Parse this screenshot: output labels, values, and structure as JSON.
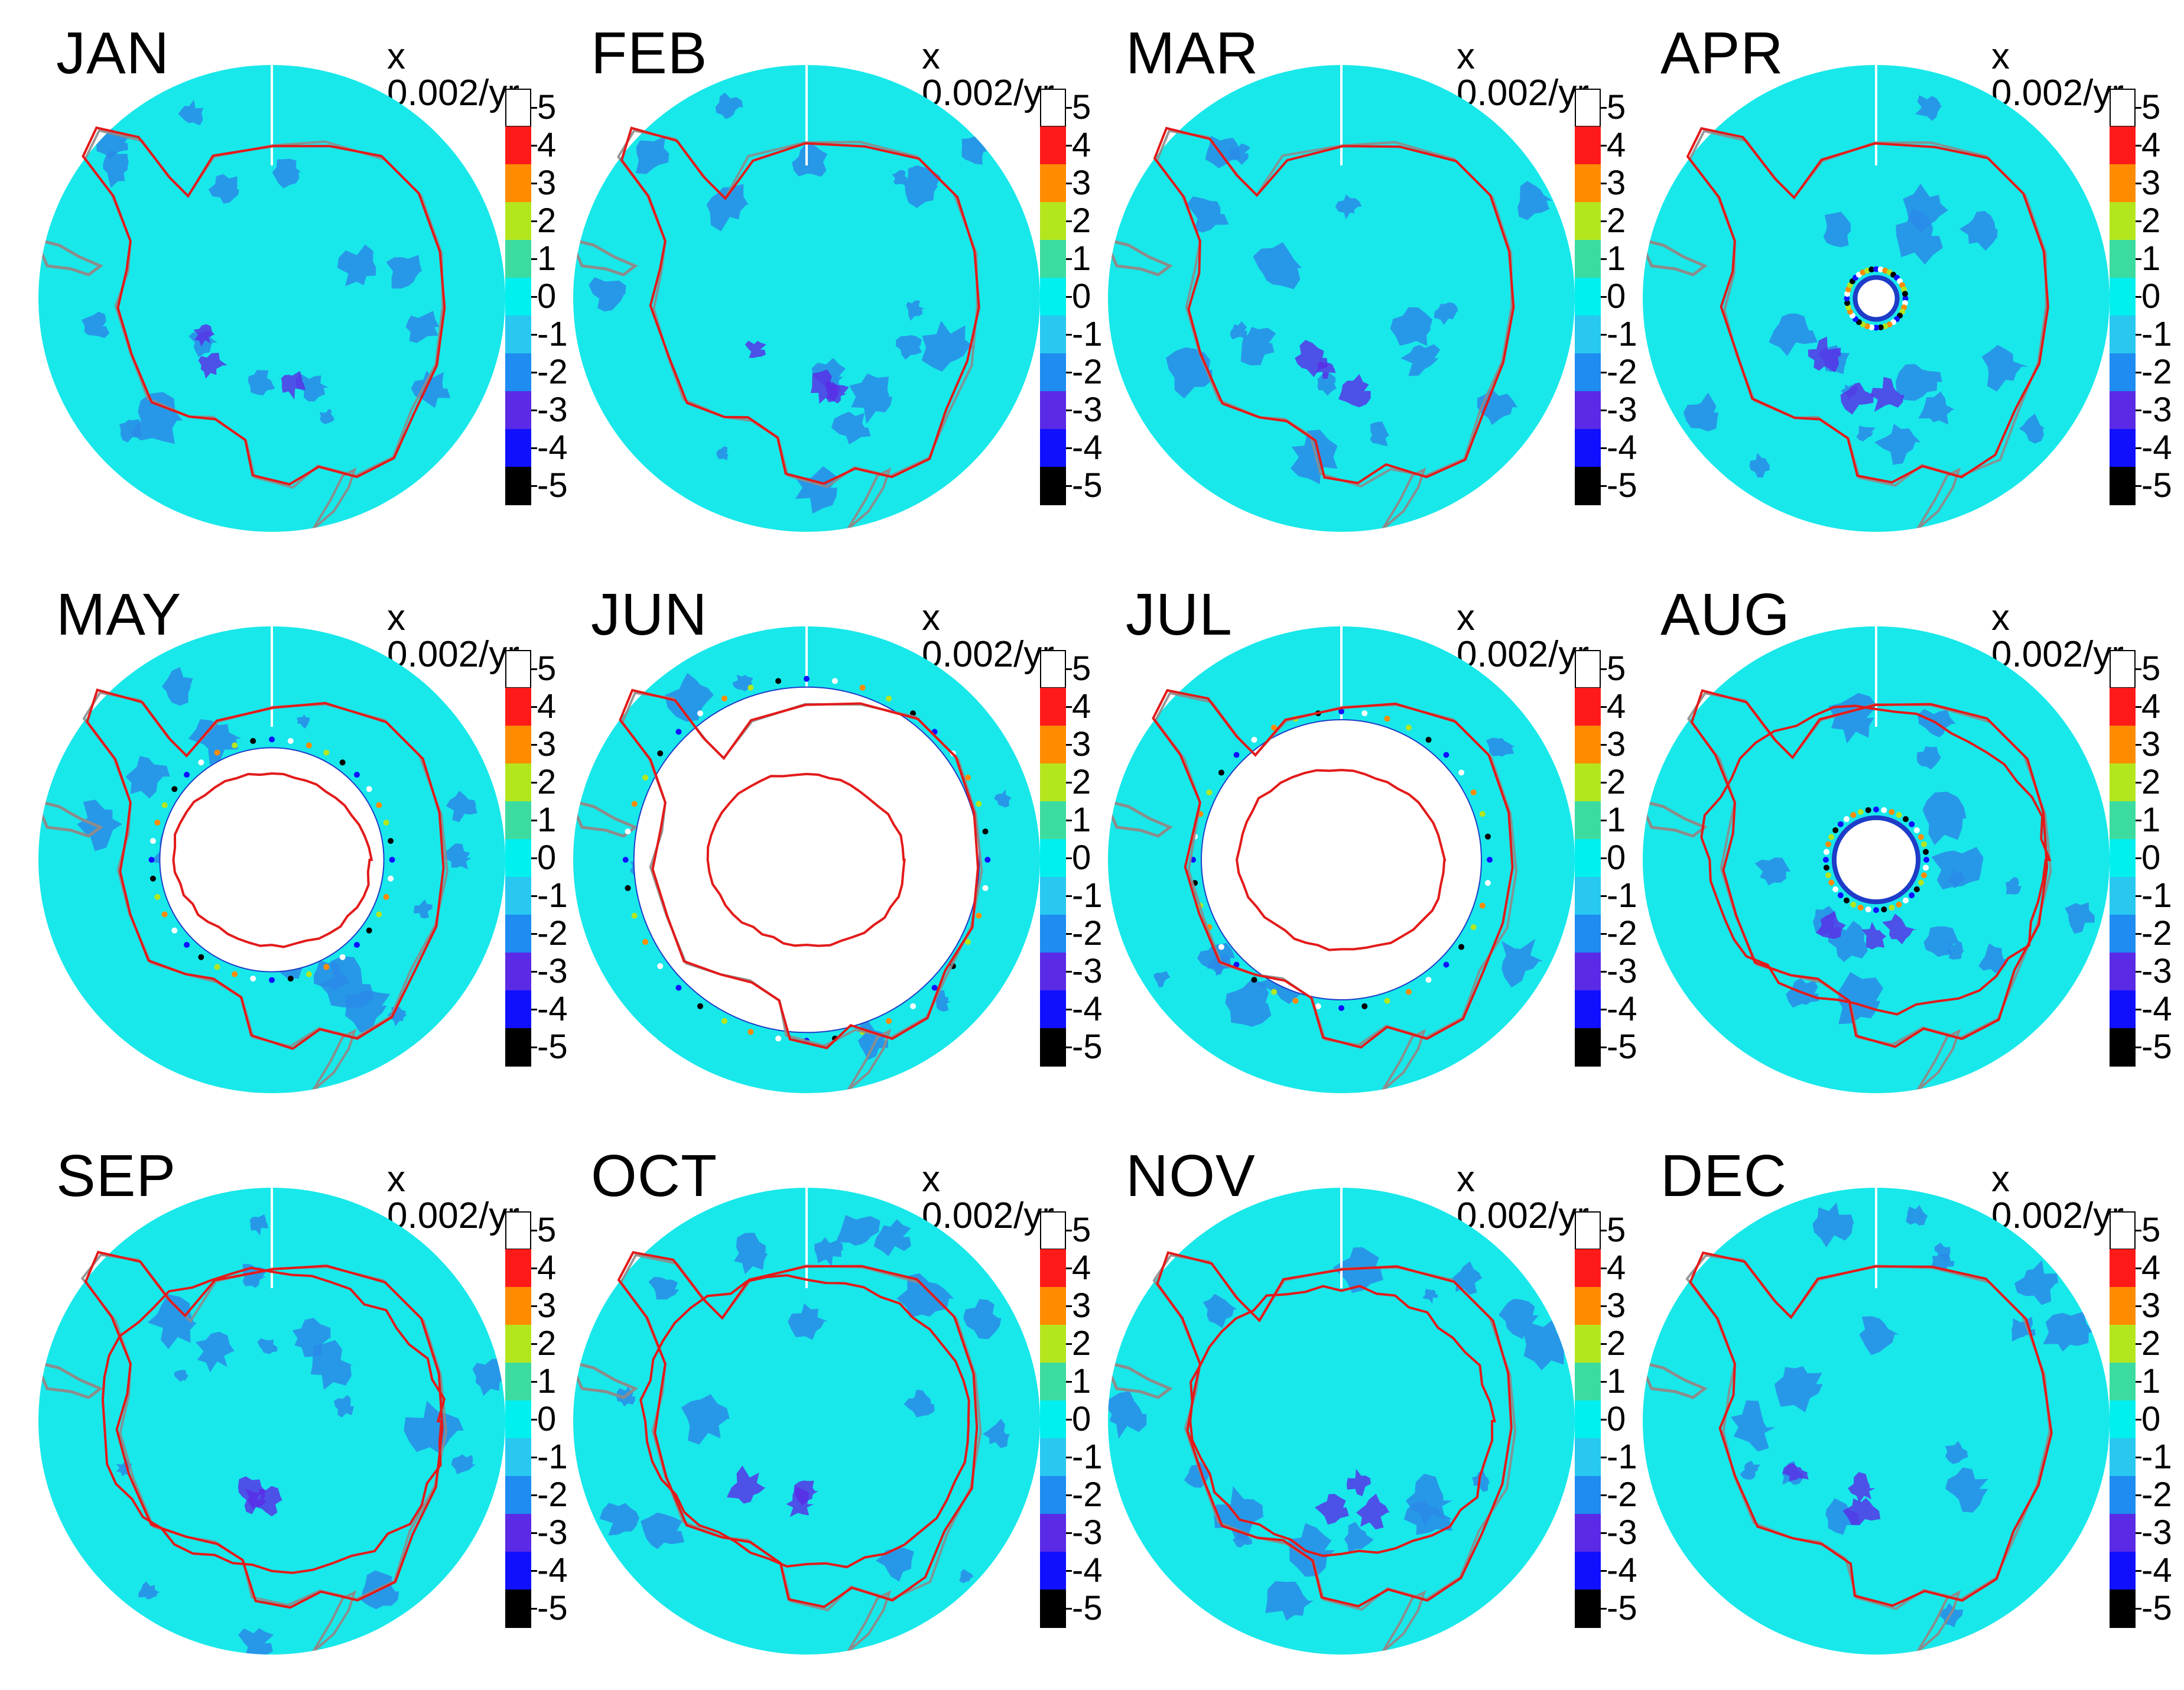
{
  "figure": {
    "unit_label": "x 0.002/yr",
    "colorbar": {
      "ticks": [
        "5",
        "4",
        "3",
        "2",
        "1",
        "0",
        "-1",
        "-2",
        "-3",
        "-4",
        "-5"
      ],
      "colors": [
        "#ffffff",
        "#ff1a1a",
        "#ff8c00",
        "#b4e61e",
        "#3cdca0",
        "#00f0f0",
        "#28c8f0",
        "#1e8cf0",
        "#5a2ae6",
        "#1010ff",
        "#000000"
      ]
    },
    "colors": {
      "ocean": "#18e8ea",
      "negative_patch": "#2a8ae8",
      "strong_negative": "#5a2ae6",
      "contour": "#e31a1a",
      "coastline": "#8c8c8c",
      "blank": "#ffffff"
    },
    "panels": [
      {
        "month": "JAN",
        "hole": 0,
        "ice_inner": 0.3,
        "ice_outer": 0
      },
      {
        "month": "FEB",
        "hole": 0,
        "ice_inner": 0.3,
        "ice_outer": 0
      },
      {
        "month": "MAR",
        "hole": 0,
        "ice_inner": 0.3,
        "ice_outer": 0
      },
      {
        "month": "APR",
        "hole": 0.045,
        "ice_inner": 0.33,
        "ice_outer": 0
      },
      {
        "month": "MAY",
        "hole": 0.24,
        "ice_inner": 0.38,
        "ice_outer": 0
      },
      {
        "month": "JUN",
        "hole": 0.37,
        "ice_inner": 0.38,
        "ice_outer": 0
      },
      {
        "month": "JUL",
        "hole": 0.3,
        "ice_inner": 0.4,
        "ice_outer": 0
      },
      {
        "month": "AUG",
        "hole": 0.09,
        "ice_inner": 0.25,
        "ice_outer": 0.45
      },
      {
        "month": "SEP",
        "hole": 0,
        "ice_inner": 0.3,
        "ice_outer": 0.45
      },
      {
        "month": "OCT",
        "hole": 0,
        "ice_inner": 0.3,
        "ice_outer": 0.43
      },
      {
        "month": "NOV",
        "hole": 0,
        "ice_inner": 0.3,
        "ice_outer": 0.4
      },
      {
        "month": "DEC",
        "hole": 0,
        "ice_inner": 0.3,
        "ice_outer": 0
      }
    ]
  }
}
